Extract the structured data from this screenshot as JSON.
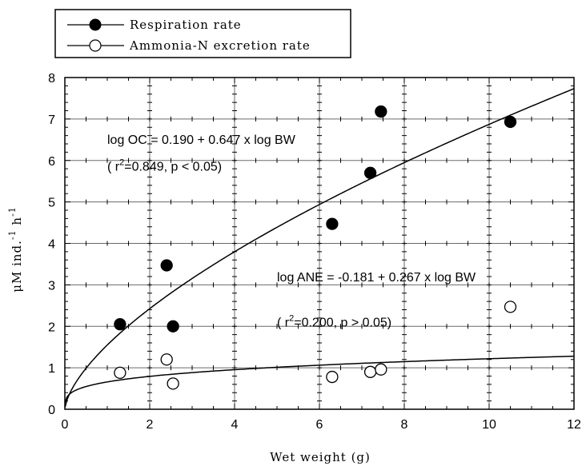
{
  "chart_data": {
    "type": "scatter",
    "xlabel": "Wet weight (g)",
    "ylabel": "μM ind.",
    "ylabel_sup1": "-1",
    "ylabel_mid": " h",
    "ylabel_sup2": "-1",
    "xlim": [
      0,
      12
    ],
    "ylim": [
      0,
      8
    ],
    "xticks": [
      "0",
      "2",
      "4",
      "6",
      "8",
      "10",
      "12"
    ],
    "yticks": [
      "0",
      "1",
      "2",
      "3",
      "4",
      "5",
      "6",
      "7",
      "8"
    ],
    "grid": true,
    "legend_position": "top-left, outside plot",
    "series": [
      {
        "name": "Respiration rate",
        "marker": "filled-circle",
        "x": [
          1.3,
          2.4,
          2.55,
          6.3,
          7.2,
          7.45,
          10.5
        ],
        "y": [
          2.05,
          3.47,
          2.0,
          4.47,
          5.7,
          7.18,
          6.93
        ],
        "fit": {
          "type": "power",
          "a": 1.549,
          "b": 0.647
        }
      },
      {
        "name": "Ammonia-N excretion rate",
        "marker": "open-circle",
        "x": [
          1.3,
          2.4,
          2.55,
          6.3,
          7.2,
          7.45,
          10.5
        ],
        "y": [
          0.88,
          1.2,
          0.62,
          0.78,
          0.9,
          0.96,
          2.47
        ],
        "fit": {
          "type": "power",
          "a": 0.659,
          "b": 0.267
        }
      }
    ],
    "annotations": [
      {
        "text": "log OC = 0.190 + 0.647 x log BW",
        "x": 1.0,
        "y": 6.4
      },
      {
        "text_pre": "( r",
        "sup": "2",
        "text_post": "=0.849, p < 0.05)",
        "x": 1.0,
        "y": 5.75
      },
      {
        "text": "log ANE = -0.181 + 0.267 x log BW",
        "x": 5.0,
        "y": 3.08
      },
      {
        "text_pre": "( r",
        "sup": "2",
        "text_post": "=0.200, p > 0.05)",
        "x": 5.0,
        "y": 2.0
      }
    ]
  }
}
